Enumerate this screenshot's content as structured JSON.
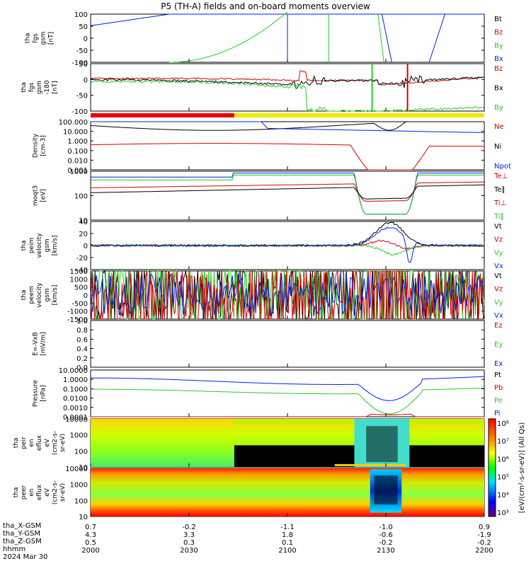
{
  "title": "P5 (TH-A) fields and on-board moments overview",
  "colors": {
    "black": "#000000",
    "red": "#d80000",
    "green": "#22cc22",
    "blue": "#0022dd",
    "yellow": "#f0e000"
  },
  "chart_data": [
    {
      "type": "line",
      "id": "fgs",
      "ylabel": [
        "tha",
        "fgs",
        "gsm",
        "[nT]"
      ],
      "yticks": [
        "100",
        "50",
        "0",
        "-50",
        "-100"
      ],
      "ylim": [
        -100,
        100
      ],
      "legend": [
        {
          "name": "Bt",
          "color": "black"
        },
        {
          "name": "Bz",
          "color": "red"
        },
        {
          "name": "By",
          "color": "green"
        },
        {
          "name": "Bx",
          "color": "blue"
        }
      ]
    },
    {
      "type": "line",
      "id": "fgs_zoom",
      "ylabel": [
        "tha",
        "fgs",
        "gsm",
        "-180",
        "[nT]"
      ],
      "yticks": [
        "50",
        "0",
        "-50",
        "-100"
      ],
      "ylim": [
        -130,
        70
      ],
      "legend": [
        {
          "name": "Bz",
          "color": "red"
        },
        {
          "name": "Bx",
          "color": "black"
        },
        {
          "name": "By",
          "color": "green"
        }
      ]
    },
    {
      "type": "line",
      "id": "density",
      "log": true,
      "ylabel": [
        "Density",
        "[cm-3]"
      ],
      "yticks": [
        "100.000",
        "10.000",
        "1.000",
        "0.100",
        "0.010",
        "0.001"
      ],
      "legend": [
        {
          "name": "Ne",
          "color": "red"
        },
        {
          "name": "Ni",
          "color": "black"
        },
        {
          "name": "Npot",
          "color": "blue"
        }
      ]
    },
    {
      "type": "line",
      "id": "temperature",
      "log": true,
      "ylabel": [
        "moqt3",
        "[eV]"
      ],
      "yticks": [
        "1000",
        "100",
        "10"
      ],
      "legend": [
        {
          "name": "Te⊥",
          "color": "red"
        },
        {
          "name": "Te∥",
          "color": "black"
        },
        {
          "name": "Ti⊥",
          "color": "red"
        },
        {
          "name": "Ti∥",
          "color": "green"
        }
      ]
    },
    {
      "type": "line",
      "id": "peim_velocity",
      "ylabel": [
        "tha",
        "peim",
        "velocity",
        "gsm",
        "[km/s]"
      ],
      "yticks": [
        "40",
        "20",
        "0",
        "-20",
        "-40"
      ],
      "ylim": [
        -40,
        40
      ],
      "legend": [
        {
          "name": "Vt",
          "color": "black"
        },
        {
          "name": "Vz",
          "color": "red"
        },
        {
          "name": "Vy",
          "color": "green"
        },
        {
          "name": "Vx",
          "color": "blue"
        }
      ]
    },
    {
      "type": "line",
      "id": "peem_velocity",
      "ylabel": [
        "tha",
        "peem",
        "velocity",
        "gsm",
        "[km/s]"
      ],
      "yticks": [
        "1500",
        "1000",
        "500",
        "0",
        "-500",
        "-1000",
        "-1500"
      ],
      "ylim": [
        -1500,
        1500
      ],
      "legend": [
        {
          "name": "Vt",
          "color": "black"
        },
        {
          "name": "Vz",
          "color": "red"
        },
        {
          "name": "Vy",
          "color": "green"
        },
        {
          "name": "Vx",
          "color": "blue"
        }
      ]
    },
    {
      "type": "line",
      "id": "efield",
      "ylabel": [
        "E=-VxB",
        "[mV/m]"
      ],
      "yticks": [
        "1.0",
        "0.8",
        "0.6",
        "0.4",
        "0.2",
        "0.0"
      ],
      "ylim": [
        0,
        1
      ],
      "legend": [
        {
          "name": "Ez",
          "color": "red"
        },
        {
          "name": "Ey",
          "color": "green"
        },
        {
          "name": "Ex",
          "color": "blue"
        }
      ]
    },
    {
      "type": "line",
      "id": "pressure",
      "log": true,
      "ylabel": [
        "Pressure",
        "[nPa]"
      ],
      "yticks": [
        "10.0000",
        "1.0000",
        "0.1000",
        "0.0100",
        "0.0010",
        "0.0001"
      ],
      "legend": [
        {
          "name": "Pt",
          "color": "black"
        },
        {
          "name": "Pb",
          "color": "red"
        },
        {
          "name": "Pe",
          "color": "green"
        },
        {
          "name": "Pi",
          "color": "blue"
        }
      ]
    },
    {
      "type": "heatmap",
      "id": "peir",
      "log": true,
      "ylabel": [
        "tha",
        "peir",
        "en",
        "eflux",
        "eV",
        "(cm2-s-",
        "sr-eV)"
      ],
      "yticks": [
        "10000",
        "1000",
        "100",
        "10"
      ]
    },
    {
      "type": "heatmap",
      "id": "peer",
      "log": true,
      "ylabel": [
        "tha",
        "peer",
        "en",
        "eflux",
        "eV",
        "(cm2-s-",
        "sr-eV)"
      ],
      "yticks": [
        "10000",
        "1000",
        "100",
        "10"
      ]
    }
  ],
  "colorbar": {
    "label": "[eV/(cm²-s-sr-eV)] (All Qs)",
    "ticks": [
      "10⁸",
      "10⁷",
      "10⁶",
      "10⁵",
      "10⁴",
      "10³"
    ]
  },
  "x_axis": {
    "row_labels": [
      "tha_X-GSM",
      "tha_Y-GSM",
      "tha_Z-GSM",
      "hhmm",
      "2024 Mar 30"
    ],
    "ticks": [
      {
        "x": "0.7",
        "y": "4.3",
        "z": "0.5",
        "t": "2000"
      },
      {
        "x": "-0.2",
        "y": "3.3",
        "z": "0.3",
        "t": "2030"
      },
      {
        "x": "-1.1",
        "y": "1.8",
        "z": "0.1",
        "t": "2100"
      },
      {
        "x": "-1.0",
        "y": "-0.6",
        "z": "-0.2",
        "t": "2130"
      },
      {
        "x": "0.9",
        "y": "-1.9",
        "z": "-0.2",
        "t": "2200"
      }
    ]
  }
}
